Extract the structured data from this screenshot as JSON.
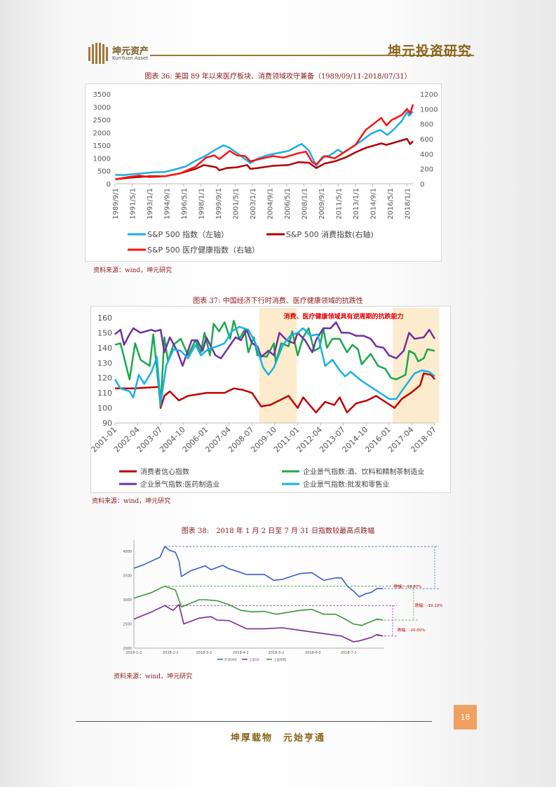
{
  "header": {
    "logo_cn": "坤元资产",
    "logo_en": "KunYuan Asset",
    "title": "坤元投资研究"
  },
  "source_note": "资料来源：wind，坤元研究",
  "page_number": "18",
  "footer": "坤厚载物　元始亨通",
  "chart_data": [
    {
      "type": "line",
      "title": "图表 36: 美国 89 年以来医疗板块、消费领域攻守兼备（1989/09/11-2018/07/31）",
      "x_ticks": [
        "1989/9/1",
        "1991/5/1",
        "1993/1/1",
        "1994/9/1",
        "1996/5/1",
        "1998/1/1",
        "1999/9/1",
        "2001/5/1",
        "2003/1/1",
        "2004/9/1",
        "2006/5/1",
        "2008/1/1",
        "2009/9/1",
        "2011/5/1",
        "2013/1/1",
        "2014/9/1",
        "2016/5/1",
        "2018/1/1"
      ],
      "x_tick_values": [
        1989.67,
        1991.33,
        1993.0,
        1994.67,
        1996.33,
        1998.0,
        1999.67,
        2001.33,
        2003.0,
        2004.67,
        2006.33,
        2008.0,
        2009.67,
        2011.33,
        2013.0,
        2014.67,
        2016.33,
        2018.0
      ],
      "xlim": [
        1989.67,
        2018.58
      ],
      "y_left_ticks": [
        "0",
        "500",
        "1000",
        "1500",
        "2000",
        "2500",
        "3000",
        "3500"
      ],
      "ylim_left": [
        0,
        3500
      ],
      "y_right_ticks": [
        "0",
        "200",
        "400",
        "600",
        "800",
        "1000",
        "1200"
      ],
      "ylim_right": [
        0,
        1200
      ],
      "series": [
        {
          "name": "S&P 500 指数（左轴）",
          "axis": "left",
          "color": "#1aaee8",
          "x": [
            1989.7,
            1990.5,
            1991.5,
            1992.5,
            1993.5,
            1994.5,
            1995.5,
            1996.5,
            1997.5,
            1998.5,
            1999.5,
            2000.2,
            2000.8,
            2001.5,
            2002.5,
            2002.8,
            2003.5,
            2004.5,
            2005.5,
            2006.5,
            2007.5,
            2007.8,
            2008.5,
            2009.2,
            2009.8,
            2010.5,
            2011.3,
            2011.8,
            2012.5,
            2013.5,
            2014.5,
            2015.4,
            2016.1,
            2016.8,
            2017.5,
            2018.0,
            2018.2,
            2018.58
          ],
          "y": [
            350,
            340,
            380,
            410,
            450,
            460,
            560,
            670,
            900,
            1100,
            1350,
            1500,
            1400,
            1200,
            900,
            800,
            980,
            1120,
            1200,
            1280,
            1500,
            1550,
            1280,
            700,
            1050,
            1100,
            1330,
            1200,
            1380,
            1650,
            1950,
            2100,
            1900,
            2150,
            2450,
            2800,
            2650,
            2820
          ]
        },
        {
          "name": "S&P 500 消费指数(右轴)",
          "axis": "right",
          "color": "#b00000",
          "x": [
            1989.7,
            1991,
            1993,
            1994.5,
            1996,
            1997.5,
            1998.3,
            1999.5,
            1999.8,
            2000.5,
            2001.5,
            2002.5,
            2002.8,
            2003.5,
            2005,
            2006.5,
            2007.5,
            2008.5,
            2009.2,
            2010,
            2011,
            2012,
            2013,
            2014,
            2015.5,
            2016,
            2017,
            2018,
            2018.3,
            2018.58
          ],
          "y": [
            60,
            80,
            100,
            100,
            140,
            200,
            250,
            220,
            180,
            210,
            220,
            250,
            200,
            210,
            240,
            250,
            290,
            280,
            210,
            270,
            300,
            350,
            420,
            480,
            540,
            520,
            560,
            600,
            530,
            570
          ]
        },
        {
          "name": "S&P 500 医疗健康指数（右轴）",
          "axis": "right",
          "color": "#ff1010",
          "x": [
            1989.7,
            1991,
            1992,
            1993,
            1994.5,
            1996,
            1997.5,
            1998.5,
            1999.3,
            1999.8,
            2000.8,
            2001.5,
            2002.3,
            2002.8,
            2004,
            2005,
            2006,
            2007.5,
            2008.2,
            2008.8,
            2009.2,
            2010,
            2011,
            2012,
            2013,
            2014,
            2015.5,
            2016,
            2016.5,
            2017.5,
            2018,
            2018.3,
            2018.58
          ],
          "y": [
            60,
            90,
            110,
            90,
            100,
            140,
            230,
            350,
            380,
            330,
            440,
            380,
            370,
            300,
            340,
            370,
            350,
            410,
            430,
            290,
            260,
            370,
            340,
            430,
            520,
            720,
            880,
            780,
            850,
            920,
            1000,
            940,
            1060
          ]
        }
      ]
    },
    {
      "type": "line",
      "title": "图表 37: 中国经济下行时消费、医疗健康领域的抗跌性",
      "annotation": "消费、医疗健康领域具有逆周期的抗跌能力",
      "shaded_ranges": [
        [
          2008.9,
          2010.95
        ],
        [
          2016.2,
          2018.75
        ]
      ],
      "x_ticks": [
        "2001-01",
        "2002-04",
        "2003-07",
        "2004-10",
        "2006-01",
        "2007-04",
        "2008-07",
        "2009-10",
        "2011-01",
        "2012-04",
        "2013-07",
        "2014-10",
        "2016-01",
        "2017-04",
        "2018-07"
      ],
      "x_tick_values": [
        2001.0,
        2002.25,
        2003.5,
        2004.75,
        2006.0,
        2007.25,
        2008.5,
        2009.75,
        2011.0,
        2012.25,
        2013.5,
        2014.75,
        2016.0,
        2017.25,
        2018.5
      ],
      "xlim": [
        2001.0,
        2018.5
      ],
      "y_ticks": [
        "90",
        "100",
        "110",
        "120",
        "130",
        "140",
        "150",
        "160"
      ],
      "ylim": [
        90,
        160
      ],
      "series": [
        {
          "name": "消费者信心指数",
          "color": "#c00000",
          "x": [
            2001,
            2002,
            2003.4,
            2003.5,
            2003.7,
            2004,
            2004.5,
            2005,
            2006,
            2007,
            2007.5,
            2008,
            2008.5,
            2009,
            2009.5,
            2010,
            2010.5,
            2011,
            2011.3,
            2012,
            2012.5,
            2013,
            2013.3,
            2013.7,
            2014.2,
            2014.8,
            2015.3,
            2015.8,
            2016.3,
            2016.7,
            2017.2,
            2017.7,
            2017.9,
            2018.3,
            2018.5
          ],
          "y": [
            113,
            113,
            114,
            100,
            108,
            111,
            105,
            108,
            110,
            110,
            113,
            112,
            110,
            101,
            102,
            105,
            108,
            100,
            107,
            97,
            104,
            102,
            107,
            97,
            103,
            105,
            108,
            104,
            100,
            106,
            110,
            115,
            123,
            122,
            119
          ]
        },
        {
          "name": "企业景气指数:酒、饮料和精制茶制造业",
          "color": "#1aa84a",
          "x": [
            2001,
            2001.3,
            2001.8,
            2002.1,
            2002.4,
            2002.9,
            2003.1,
            2003.5,
            2003.7,
            2003.9,
            2004.2,
            2004.6,
            2005,
            2005.4,
            2005.7,
            2005.9,
            2006.2,
            2006.4,
            2006.7,
            2007,
            2007.3,
            2007.5,
            2007.8,
            2008.1,
            2008.3,
            2008.6,
            2008.8,
            2009.3,
            2009.7,
            2009.8,
            2010.1,
            2010.5,
            2010.7,
            2011,
            2011.3,
            2011.6,
            2011.9,
            2012.2,
            2012.4,
            2012.6,
            2012.9,
            2013.3,
            2013.7,
            2014,
            2014.3,
            2014.5,
            2015,
            2015.4,
            2015.8,
            2016.1,
            2016.4,
            2016.9,
            2017.1,
            2017.4,
            2017.6,
            2017.9,
            2018.1,
            2018.5
          ],
          "y": [
            142,
            143,
            119,
            143,
            132,
            128,
            149,
            101,
            147,
            131,
            142,
            146,
            135,
            145,
            137,
            150,
            135,
            156,
            151,
            157,
            146,
            158,
            146,
            152,
            137,
            147,
            135,
            134,
            143,
            130,
            143,
            141,
            151,
            135,
            147,
            153,
            138,
            140,
            153,
            140,
            146,
            146,
            137,
            142,
            139,
            129,
            136,
            128,
            126,
            120,
            119,
            122,
            138,
            136,
            131,
            133,
            139,
            138
          ]
        },
        {
          "name": "企业景气指数:医药制造业",
          "color": "#7030a0",
          "x": [
            2001,
            2001.3,
            2001.5,
            2001.8,
            2002,
            2002.4,
            2003,
            2003.2,
            2003.5,
            2003.7,
            2004,
            2004.4,
            2004.7,
            2005.2,
            2005.5,
            2005.8,
            2006,
            2006.5,
            2006.8,
            2007.2,
            2007.6,
            2007.9,
            2008.2,
            2008.5,
            2008.8,
            2009,
            2009.4,
            2009.7,
            2010,
            2010.4,
            2010.8,
            2011,
            2011.4,
            2011.8,
            2012,
            2012.4,
            2012.8,
            2013.1,
            2013.4,
            2013.8,
            2014.2,
            2014.6,
            2015,
            2015.3,
            2015.7,
            2016,
            2016.4,
            2016.8,
            2017.1,
            2017.4,
            2017.9,
            2018.2,
            2018.5
          ],
          "y": [
            149,
            152,
            142,
            149,
            153,
            150,
            152,
            151,
            152,
            137,
            147,
            138,
            128,
            145,
            145,
            138,
            147,
            135,
            133,
            140,
            147,
            145,
            152,
            143,
            141,
            134,
            138,
            135,
            150,
            145,
            143,
            150,
            145,
            137,
            145,
            153,
            153,
            157,
            150,
            150,
            148,
            148,
            146,
            141,
            140,
            135,
            133,
            138,
            150,
            146,
            147,
            152,
            146
          ]
        },
        {
          "name": "企业景气指数:批发和零售业",
          "color": "#1ab0e8",
          "x": [
            2001,
            2001.3,
            2001.8,
            2002,
            2002.3,
            2002.6,
            2003,
            2003.3,
            2003.5,
            2003.8,
            2004.2,
            2004.6,
            2005,
            2005.4,
            2005.7,
            2006.1,
            2006.6,
            2007,
            2007.4,
            2007.8,
            2008.3,
            2008.7,
            2009.1,
            2009.4,
            2009.7,
            2010.2,
            2010.6,
            2011,
            2011.3,
            2011.7,
            2012.1,
            2012.5,
            2012.9,
            2013.3,
            2013.6,
            2013.9,
            2014.5,
            2015.5,
            2016,
            2016.4,
            2016.8,
            2017.1,
            2017.4,
            2017.8,
            2018.2,
            2018.5
          ],
          "y": [
            119,
            113,
            111,
            107,
            122,
            116,
            124,
            134,
            103,
            128,
            139,
            138,
            133,
            142,
            135,
            139,
            141,
            143,
            151,
            154,
            152,
            143,
            127,
            122,
            127,
            142,
            148,
            150,
            153,
            148,
            149,
            128,
            132,
            125,
            121,
            124,
            118,
            110,
            106,
            106,
            113,
            118,
            123,
            125,
            124,
            121
          ]
        }
      ]
    },
    {
      "type": "line",
      "title": "图表 38:　2018 年 1 月 2 日至 7 月 31 日指数较最高点跌幅",
      "x_ticks": [
        "2018-1-2",
        "2018-2-2",
        "2018-3-2",
        "2018-4-2",
        "2018-5-2",
        "2018-6-2",
        "2018-7-2"
      ],
      "x_tick_values": [
        0,
        31,
        59,
        90,
        120,
        151,
        181
      ],
      "xlim": [
        0,
        211
      ],
      "y_ticks": [
        "2000",
        "2500",
        "3000",
        "3500",
        "4000"
      ],
      "ylim": [
        2000,
        4200
      ],
      "annotations": [
        "跌幅：-19.87%",
        "跌幅：-19.19%",
        "跌幅：-20.00%"
      ],
      "series": [
        {
          "name": "沪深300",
          "color": "#3a5cc8",
          "x": [
            0,
            8,
            15,
            22,
            26,
            30,
            35,
            38,
            40,
            48,
            60,
            65,
            75,
            80,
            88,
            95,
            110,
            118,
            125,
            140,
            150,
            155,
            160,
            170,
            175,
            180,
            185,
            190,
            195,
            200,
            205,
            210
          ],
          "y": [
            3650,
            3720,
            3800,
            3880,
            4100,
            4020,
            3980,
            3800,
            3480,
            3600,
            3700,
            3620,
            3710,
            3640,
            3580,
            3520,
            3520,
            3400,
            3420,
            3540,
            3560,
            3480,
            3400,
            3450,
            3450,
            3280,
            3180,
            3060,
            3120,
            3150,
            3230,
            3230
          ]
        },
        {
          "name": "上证50",
          "color": "#7a2a90",
          "x": [
            0,
            15,
            26,
            33,
            38,
            42,
            55,
            65,
            70,
            80,
            95,
            110,
            125,
            145,
            160,
            175,
            185,
            190,
            200,
            205,
            210
          ],
          "y": [
            2600,
            2750,
            2880,
            2780,
            2900,
            2500,
            2620,
            2650,
            2580,
            2570,
            2400,
            2400,
            2420,
            2350,
            2300,
            2250,
            2130,
            2150,
            2220,
            2280,
            2250
          ]
        },
        {
          "name": "上证综指",
          "color": "#3a9a3a",
          "x": [
            0,
            15,
            26,
            35,
            40,
            55,
            60,
            70,
            80,
            90,
            100,
            110,
            120,
            140,
            150,
            160,
            170,
            178,
            185,
            192,
            200,
            205,
            210
          ],
          "y": [
            3030,
            3150,
            3280,
            3200,
            2850,
            3000,
            3000,
            2980,
            2900,
            2780,
            2750,
            2760,
            2700,
            2780,
            2800,
            2700,
            2700,
            2600,
            2500,
            2470,
            2550,
            2600,
            2580
          ]
        }
      ]
    }
  ]
}
